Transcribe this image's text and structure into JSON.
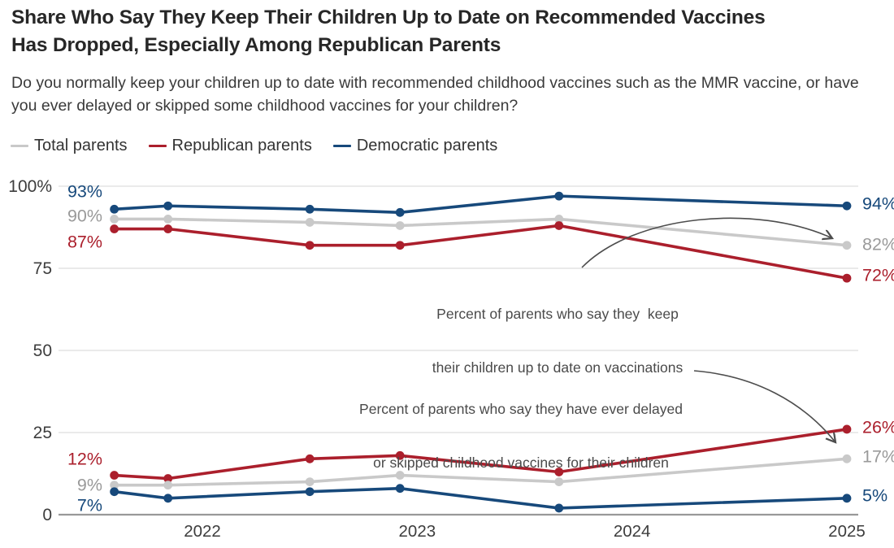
{
  "title": {
    "line1": "Share Who Say They Keep Their Children Up to Date on Recommended Vaccines",
    "line2": "Has Dropped, Especially Among Republican Parents"
  },
  "subtitle": "Do you normally keep your children up to date with recommended childhood vaccines such as the MMR vaccine, or have you ever delayed or skipped some childhood vaccines for your children?",
  "legend": [
    {
      "label": "Total parents",
      "color": "#c9c9c9"
    },
    {
      "label": "Republican parents",
      "color": "#ab1f2c"
    },
    {
      "label": "Democratic parents",
      "color": "#17497b"
    }
  ],
  "colors": {
    "background": "#ffffff",
    "title": "#272727",
    "subtitle": "#3a3a3a",
    "axis_text": "#3d3d3d",
    "gridline": "#e4e4e4",
    "baseline": "#999999",
    "annotation": "#4a4a4a",
    "arrow": "#4d4d4d",
    "total": "#c9c9c9",
    "total_label": "#9a9a9a",
    "republican": "#ab1f2c",
    "democratic": "#17497b"
  },
  "chart_data": {
    "type": "line",
    "x": [
      2021.59,
      2021.84,
      2022.5,
      2022.92,
      2023.66,
      2025
    ],
    "xlim": [
      2021.35,
      2025.05
    ],
    "ylim": [
      0,
      100
    ],
    "grid": "horizontal",
    "legend_position": "top-left",
    "x_ticks": [
      {
        "value": 2022,
        "label": "2022"
      },
      {
        "value": 2023,
        "label": "2023"
      },
      {
        "value": 2024,
        "label": "2024"
      },
      {
        "value": 2025,
        "label": "2025"
      }
    ],
    "y_ticks": [
      {
        "value": 100,
        "label": "100%"
      },
      {
        "value": 75,
        "label": "75"
      },
      {
        "value": 50,
        "label": "50"
      },
      {
        "value": 25,
        "label": "25"
      },
      {
        "value": 0,
        "label": "0"
      }
    ],
    "series": [
      {
        "name": "Democratic parents",
        "group": "keep-up-to-date",
        "color": "#17497b",
        "values": [
          93,
          94,
          93,
          92,
          97,
          94
        ],
        "start_label": "93%",
        "end_label": "94%"
      },
      {
        "name": "Total parents",
        "group": "keep-up-to-date",
        "color": "#c9c9c9",
        "label_color": "#9a9a9a",
        "values": [
          90,
          90,
          89,
          88,
          90,
          82
        ],
        "start_label": "90%",
        "end_label": "82%"
      },
      {
        "name": "Republican parents",
        "group": "keep-up-to-date",
        "color": "#ab1f2c",
        "values": [
          87,
          87,
          82,
          82,
          88,
          72
        ],
        "start_label": "87%",
        "end_label": "72%"
      },
      {
        "name": "Republican parents",
        "group": "delayed-or-skipped",
        "color": "#ab1f2c",
        "values": [
          12,
          11,
          17,
          18,
          13,
          26
        ],
        "start_label": "12%",
        "end_label": "26%"
      },
      {
        "name": "Total parents",
        "group": "delayed-or-skipped",
        "color": "#c9c9c9",
        "label_color": "#9a9a9a",
        "values": [
          9,
          9,
          10,
          12,
          10,
          17
        ],
        "start_label": "9%",
        "end_label": "17%"
      },
      {
        "name": "Democratic parents",
        "group": "delayed-or-skipped",
        "color": "#17497b",
        "values": [
          7,
          5,
          7,
          8,
          2,
          5
        ],
        "start_label": "7%",
        "end_label": "5%"
      }
    ],
    "annotations": [
      {
        "line1": "Percent of parents who say they  keep",
        "line2": "their children up to date on vaccinations"
      },
      {
        "line1": "Percent of parents who say they have ever delayed",
        "line2": "or skipped childhood vaccines for their children"
      }
    ]
  }
}
